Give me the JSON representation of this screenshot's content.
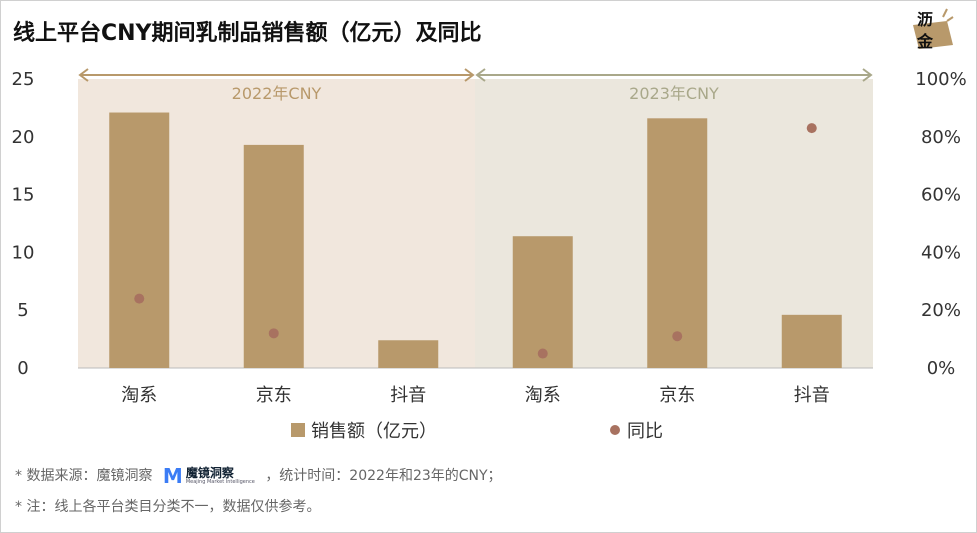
{
  "title": "线上平台CNY期间乳制品销售额（亿元）及同比",
  "logo_text": "沥金",
  "notes": {
    "source_prefix": "* 数据来源：魔镜洞察",
    "source_brand": "魔镜洞察",
    "source_brand_sub": "Meajing Market Intelligence",
    "source_suffix": "，统计时间：2022年和23年的CNY；",
    "note": "* 注：线上各平台类目分类不一，数据仅供参考。"
  },
  "colors": {
    "bar": "#b8996b",
    "dot": "#a87260",
    "band2022": "#f1e7dd",
    "band2023": "#ebe7dd",
    "arrow2022": "#b8996b",
    "arrow2023": "#a9a88a"
  },
  "chart_data": {
    "type": "bar+scatter",
    "categories": [
      "淘系",
      "京东",
      "抖音",
      "淘系",
      "京东",
      "抖音"
    ],
    "groups": [
      {
        "label": "2022年CNY"
      },
      {
        "label": "2023年CNY"
      }
    ],
    "series": [
      {
        "name": "销售额（亿元）",
        "type": "bar",
        "axis": "left",
        "values": [
          22.1,
          19.3,
          2.4,
          11.4,
          21.6,
          4.6
        ]
      },
      {
        "name": "同比",
        "type": "scatter",
        "axis": "right",
        "values": [
          24,
          12,
          null,
          5,
          11,
          83
        ]
      }
    ],
    "ylim": [
      0,
      25
    ],
    "yticks": [
      "0",
      "5",
      "10",
      "15",
      "20",
      "25"
    ],
    "y2lim": [
      0,
      100
    ],
    "y2ticks": [
      "0%",
      "20%",
      "40%",
      "60%",
      "80%",
      "100%"
    ],
    "legend": "bottom"
  }
}
